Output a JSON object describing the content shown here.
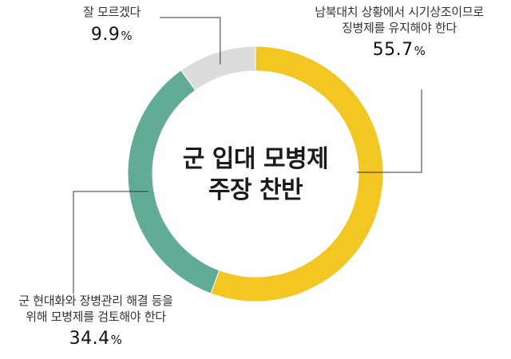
{
  "chart_data": {
    "type": "pie",
    "donut": true,
    "title_lines": [
      "군 입대 모병제",
      "주장 찬반"
    ],
    "slices": [
      {
        "label_lines": [
          "남북대치 상황에서 시기상조이므로",
          "징병제를 유지해야 한다"
        ],
        "value": 55.7,
        "color": "#f2c623"
      },
      {
        "label_lines": [
          "군 현대화와 장병관리 해결 등을",
          "위해 모병제를 검토해야 한다"
        ],
        "value": 34.4,
        "color": "#62ab96"
      },
      {
        "label_lines": [
          "잘 모르겠다"
        ],
        "value": 9.9,
        "color": "#dcdcdc"
      }
    ],
    "unit": "%",
    "legend": "none"
  }
}
